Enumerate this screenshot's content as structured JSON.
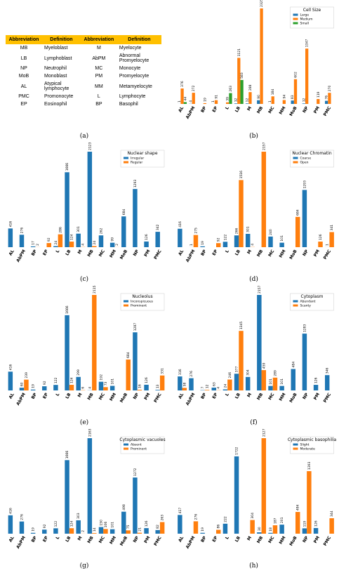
{
  "table": {
    "header": [
      "Abbreviation",
      "Definition",
      "Abbreviation",
      "Definition"
    ],
    "rows": [
      [
        "MB",
        "Myeloblast",
        "M",
        "Myelocyte"
      ],
      [
        "LB",
        "Lymphoblast",
        "AbPM",
        "Abnormal Promyelocyte"
      ],
      [
        "NP",
        "Neutrophil",
        "MC",
        "Monocyte"
      ],
      [
        "MoB",
        "Monoblast",
        "PM",
        "Promyelocyte"
      ],
      [
        "AL",
        "Atypical lymphocyte",
        "MM",
        "Metamyelocyte"
      ],
      [
        "PMC",
        "Promonocyte",
        "L",
        "Lymphocyte"
      ],
      [
        "EP",
        "Eosinophil",
        "BP",
        "Basophil"
      ]
    ]
  },
  "captions": [
    "(a)",
    "(b)",
    "(c)",
    "(d)",
    "(e)",
    "(f)",
    "(g)",
    "(h)"
  ],
  "chart_data": [
    {
      "type": "bar",
      "legend_title": "Cell Size",
      "legend": "upper right",
      "ylim": [
        0,
        2325
      ],
      "categories": [
        "AL",
        "AbPM",
        "BP",
        "EP",
        "L",
        "LB",
        "M",
        "MB",
        "MC",
        "MM",
        "MoB",
        "NP",
        "PM",
        "PMC"
      ],
      "series": [
        {
          "name": "Large",
          "color": "#1f77b4",
          "values": [
            1,
            4,
            0,
            1,
            0,
            12,
            12,
            90,
            1,
            0,
            83,
            12,
            0,
            76
          ]
        },
        {
          "name": "Medium",
          "color": "#ff7f0e",
          "values": [
            376,
            272,
            19,
            91,
            39,
            1121,
            288,
            2325,
            184,
            94,
            602,
            1347,
            119,
            270
          ]
        },
        {
          "name": "Small",
          "color": "#2ca02c",
          "values": [
            44,
            0,
            0,
            0,
            263,
            583,
            0,
            0,
            0,
            0,
            0,
            0,
            0,
            0
          ]
        }
      ]
    },
    {
      "type": "bar",
      "legend_title": "Nuclear shape",
      "legend": "upper right",
      "ylim": [
        0,
        2123
      ],
      "categories": [
        "AL",
        "AbPM",
        "BP",
        "EP",
        "L",
        "LB",
        "M",
        "MB",
        "MC",
        "MM",
        "MoB",
        "NP",
        "PM",
        "PMC"
      ],
      "series": [
        {
          "name": "Irregular",
          "color": "#1f77b4",
          "values": [
            416,
            276,
            17,
            0,
            24,
            1666,
            301,
            2123,
            262,
            99,
            684,
            1293,
            126,
            342
          ]
        },
        {
          "name": "Regular",
          "color": "#ff7f0e",
          "values": [
            0,
            0,
            2,
            92,
            286,
            124,
            4,
            24,
            0,
            2,
            0,
            0,
            0,
            0
          ]
        }
      ]
    },
    {
      "type": "bar",
      "legend_title": "Nuclear Chromatin",
      "legend": "upper right",
      "ylim": [
        0,
        2157
      ],
      "categories": [
        "AL",
        "AbPM",
        "BP",
        "EP",
        "L",
        "LB",
        "M",
        "MB",
        "MC",
        "MM",
        "MoB",
        "NP",
        "PM",
        "PMC"
      ],
      "series": [
        {
          "name": "Coarse",
          "color": "#1f77b4",
          "values": [
            416,
            1,
            19,
            0,
            122,
            266,
            301,
            0,
            240,
            101,
            0,
            1293,
            0,
            1
          ]
        },
        {
          "name": "Open",
          "color": "#ff7f0e",
          "values": [
            0,
            275,
            0,
            92,
            0,
            1516,
            4,
            2157,
            0,
            0,
            684,
            0,
            126,
            341
          ]
        }
      ]
    },
    {
      "type": "bar",
      "legend_title": "Nucleolus",
      "legend": "upper right",
      "ylim": [
        0,
        2115
      ],
      "categories": [
        "AL",
        "AbPM",
        "BP",
        "EP",
        "L",
        "LB",
        "M",
        "MB",
        "MC",
        "MM",
        "MoB",
        "NP",
        "PM",
        "PMC"
      ],
      "series": [
        {
          "name": "Inconspicuous",
          "color": "#1f77b4",
          "values": [
            416,
            60,
            19,
            92,
            122,
            1666,
            299,
            4,
            192,
            101,
            0,
            1287,
            126,
            13
          ]
        },
        {
          "name": "Prominent",
          "color": "#ff7f0e",
          "values": [
            0,
            239,
            0,
            0,
            0,
            124,
            6,
            2115,
            73,
            0,
            684,
            16,
            0,
            331
          ]
        }
      ]
    },
    {
      "type": "bar",
      "legend_title": "Cytoplasm",
      "legend": "upper right",
      "ylim": [
        0,
        2157
      ],
      "categories": [
        "AL",
        "AbPM",
        "BP",
        "EP",
        "L",
        "LB",
        "M",
        "MB",
        "MC",
        "MM",
        "MoB",
        "NP",
        "PM",
        "PMC"
      ],
      "series": [
        {
          "name": "Abundant",
          "color": "#1f77b4",
          "values": [
            316,
            276,
            7,
            63,
            24,
            377,
            304,
            2157,
            101,
            101,
            484,
            1283,
            126,
            346
          ]
        },
        {
          "name": "Scanty",
          "color": "#ff7f0e",
          "values": [
            58,
            0,
            12,
            4,
            246,
            1345,
            0,
            459,
            289,
            0,
            0,
            0,
            0,
            0
          ]
        }
      ]
    },
    {
      "type": "bar",
      "legend_title": "Cytoplasmic vacuoles",
      "legend": "upper right",
      "ylim": [
        0,
        2163
      ],
      "categories": [
        "AL",
        "AbPM",
        "BP",
        "EP",
        "L",
        "LB",
        "M",
        "MB",
        "MC",
        "MM",
        "MoB",
        "NP",
        "PM",
        "PMC"
      ],
      "series": [
        {
          "name": "Absent",
          "color": "#1f77b4",
          "values": [
            416,
            276,
            19,
            92,
            122,
            1666,
            303,
            2163,
            150,
            101,
            498,
            1272,
            126,
            82
          ]
        },
        {
          "name": "Prominent",
          "color": "#ff7f0e",
          "values": [
            0,
            0,
            0,
            0,
            0,
            124,
            2,
            14,
            106,
            0,
            75,
            21,
            0,
            263
          ]
        }
      ]
    },
    {
      "type": "bar",
      "legend_title": "Cytoplasmic basophilia",
      "legend": "upper right",
      "ylim": [
        0,
        2127
      ],
      "categories": [
        "AL",
        "AbPM",
        "BP",
        "EP",
        "L",
        "LB",
        "M",
        "MB",
        "MC",
        "MM",
        "MoB",
        "NP",
        "PM",
        "PMC"
      ],
      "series": [
        {
          "name": "Slight",
          "color": "#1f77b4",
          "values": [
            417,
            0,
            19,
            0,
            222,
            1722,
            0,
            30,
            18,
            201,
            0,
            119,
            126,
            0
          ]
        },
        {
          "name": "Moderate",
          "color": "#ff7f0e",
          "values": [
            0,
            276,
            0,
            86,
            0,
            0,
            304,
            2127,
            187,
            0,
            484,
            1393,
            0,
            344
          ]
        }
      ]
    }
  ]
}
